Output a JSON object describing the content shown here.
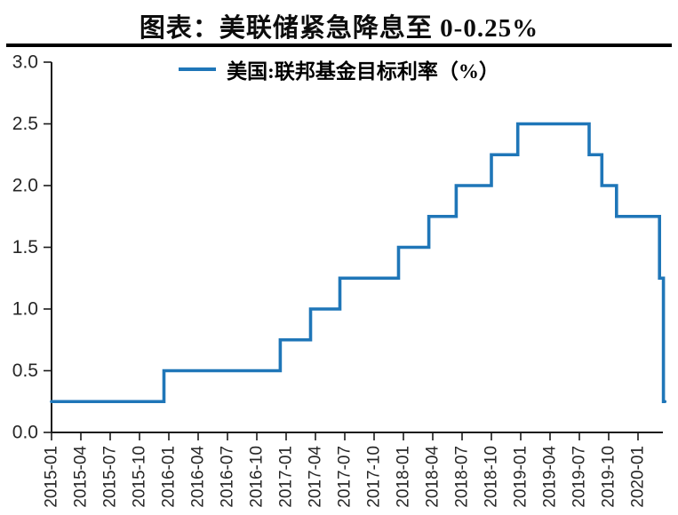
{
  "page": {
    "title": "图表：美联储紧急降息至 0-0.25%"
  },
  "legend": {
    "series_label": "美国:联邦基金目标利率（%）"
  },
  "colors": {
    "line": "#1F76B8",
    "axis": "#1a1a1a",
    "tick_text": "#262626",
    "title_text": "#0d0d0d",
    "divider": "#000000",
    "background": "#ffffff"
  },
  "chart_data": {
    "type": "line",
    "subtype": "step-after",
    "title": "图表：美联储紧急降息至 0-0.25%",
    "legend_entries": [
      "美国:联邦基金目标利率（%）"
    ],
    "legend_position": "top-center",
    "grid": false,
    "ylim": [
      0.0,
      3.0
    ],
    "y_tick_labels": [
      "3.0",
      "2.5",
      "2.0",
      "1.5",
      "1.0",
      "0.5",
      "0.0"
    ],
    "x_tick_labels": [
      "2015-01",
      "2015-04",
      "2015-07",
      "2015-10",
      "2016-01",
      "2016-04",
      "2016-07",
      "2016-10",
      "2017-01",
      "2017-04",
      "2017-07",
      "2017-10",
      "2018-01",
      "2018-04",
      "2018-07",
      "2018-10",
      "2019-01",
      "2019-04",
      "2019-07",
      "2019-10",
      "2020-01"
    ],
    "x_months_per_tick": 3,
    "xlim": [
      "2015-01",
      "2020-03"
    ],
    "series": [
      {
        "name": "美国:联邦基金目标利率（%）",
        "unit": "%",
        "steps": [
          {
            "date": "2015-01",
            "rate": 0.25,
            "m": 0
          },
          {
            "date": "2015-12",
            "rate": 0.5,
            "m": 11.5
          },
          {
            "date": "2016-12",
            "rate": 0.75,
            "m": 23.4
          },
          {
            "date": "2017-03",
            "rate": 1.0,
            "m": 26.5
          },
          {
            "date": "2017-06",
            "rate": 1.25,
            "m": 29.5
          },
          {
            "date": "2017-12",
            "rate": 1.5,
            "m": 35.5
          },
          {
            "date": "2018-03",
            "rate": 1.75,
            "m": 38.6
          },
          {
            "date": "2018-06",
            "rate": 2.0,
            "m": 41.4
          },
          {
            "date": "2018-09",
            "rate": 2.25,
            "m": 45.0
          },
          {
            "date": "2018-12",
            "rate": 2.5,
            "m": 47.7
          },
          {
            "date": "2019-08",
            "rate": 2.25,
            "m": 55.0
          },
          {
            "date": "2019-09",
            "rate": 2.0,
            "m": 56.3
          },
          {
            "date": "2019-11",
            "rate": 1.75,
            "m": 57.8
          },
          {
            "date": "2020-03",
            "rate": 1.25,
            "m": 62.2
          },
          {
            "date": "2020-03",
            "rate": 0.25,
            "m": 62.6
          }
        ],
        "end_m": 62.75
      }
    ]
  }
}
